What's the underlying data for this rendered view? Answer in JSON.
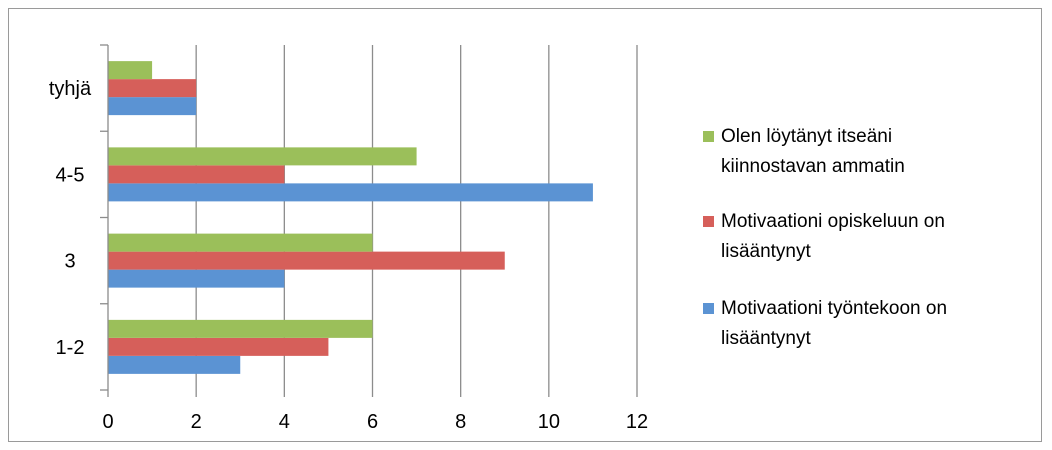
{
  "chart_data": {
    "type": "bar",
    "orientation": "horizontal",
    "categories": [
      "1-2",
      "3",
      "4-5",
      "tyhjä"
    ],
    "series": [
      {
        "name": "Motivaationi työntekoon on lisääntynyt",
        "color": "#5b93d3",
        "values": [
          3,
          4,
          11,
          2
        ]
      },
      {
        "name": "Motivaationi opiskeluun on lisääntynyt",
        "color": "#d65f5a",
        "values": [
          5,
          9,
          4,
          2
        ]
      },
      {
        "name": "Olen löytänyt itseäni kiinnostavan ammatin",
        "color": "#9bbf5a",
        "values": [
          6,
          6,
          7,
          1
        ]
      }
    ],
    "xlim": [
      0,
      12
    ],
    "x_ticks": [
      "0",
      "2",
      "4",
      "6",
      "8",
      "10",
      "12"
    ],
    "grid": true,
    "legend_position": "right",
    "legend_order": [
      2,
      1,
      0
    ],
    "legend_lines": [
      [
        "Olen löytänyt itseäni",
        "kiinnostavan ammatin"
      ],
      [
        "Motivaationi opiskeluun on",
        "lisääntynyt"
      ],
      [
        "Motivaationi työntekoon on",
        "lisääntynyt"
      ]
    ],
    "title": "",
    "xlabel": "",
    "ylabel": ""
  }
}
